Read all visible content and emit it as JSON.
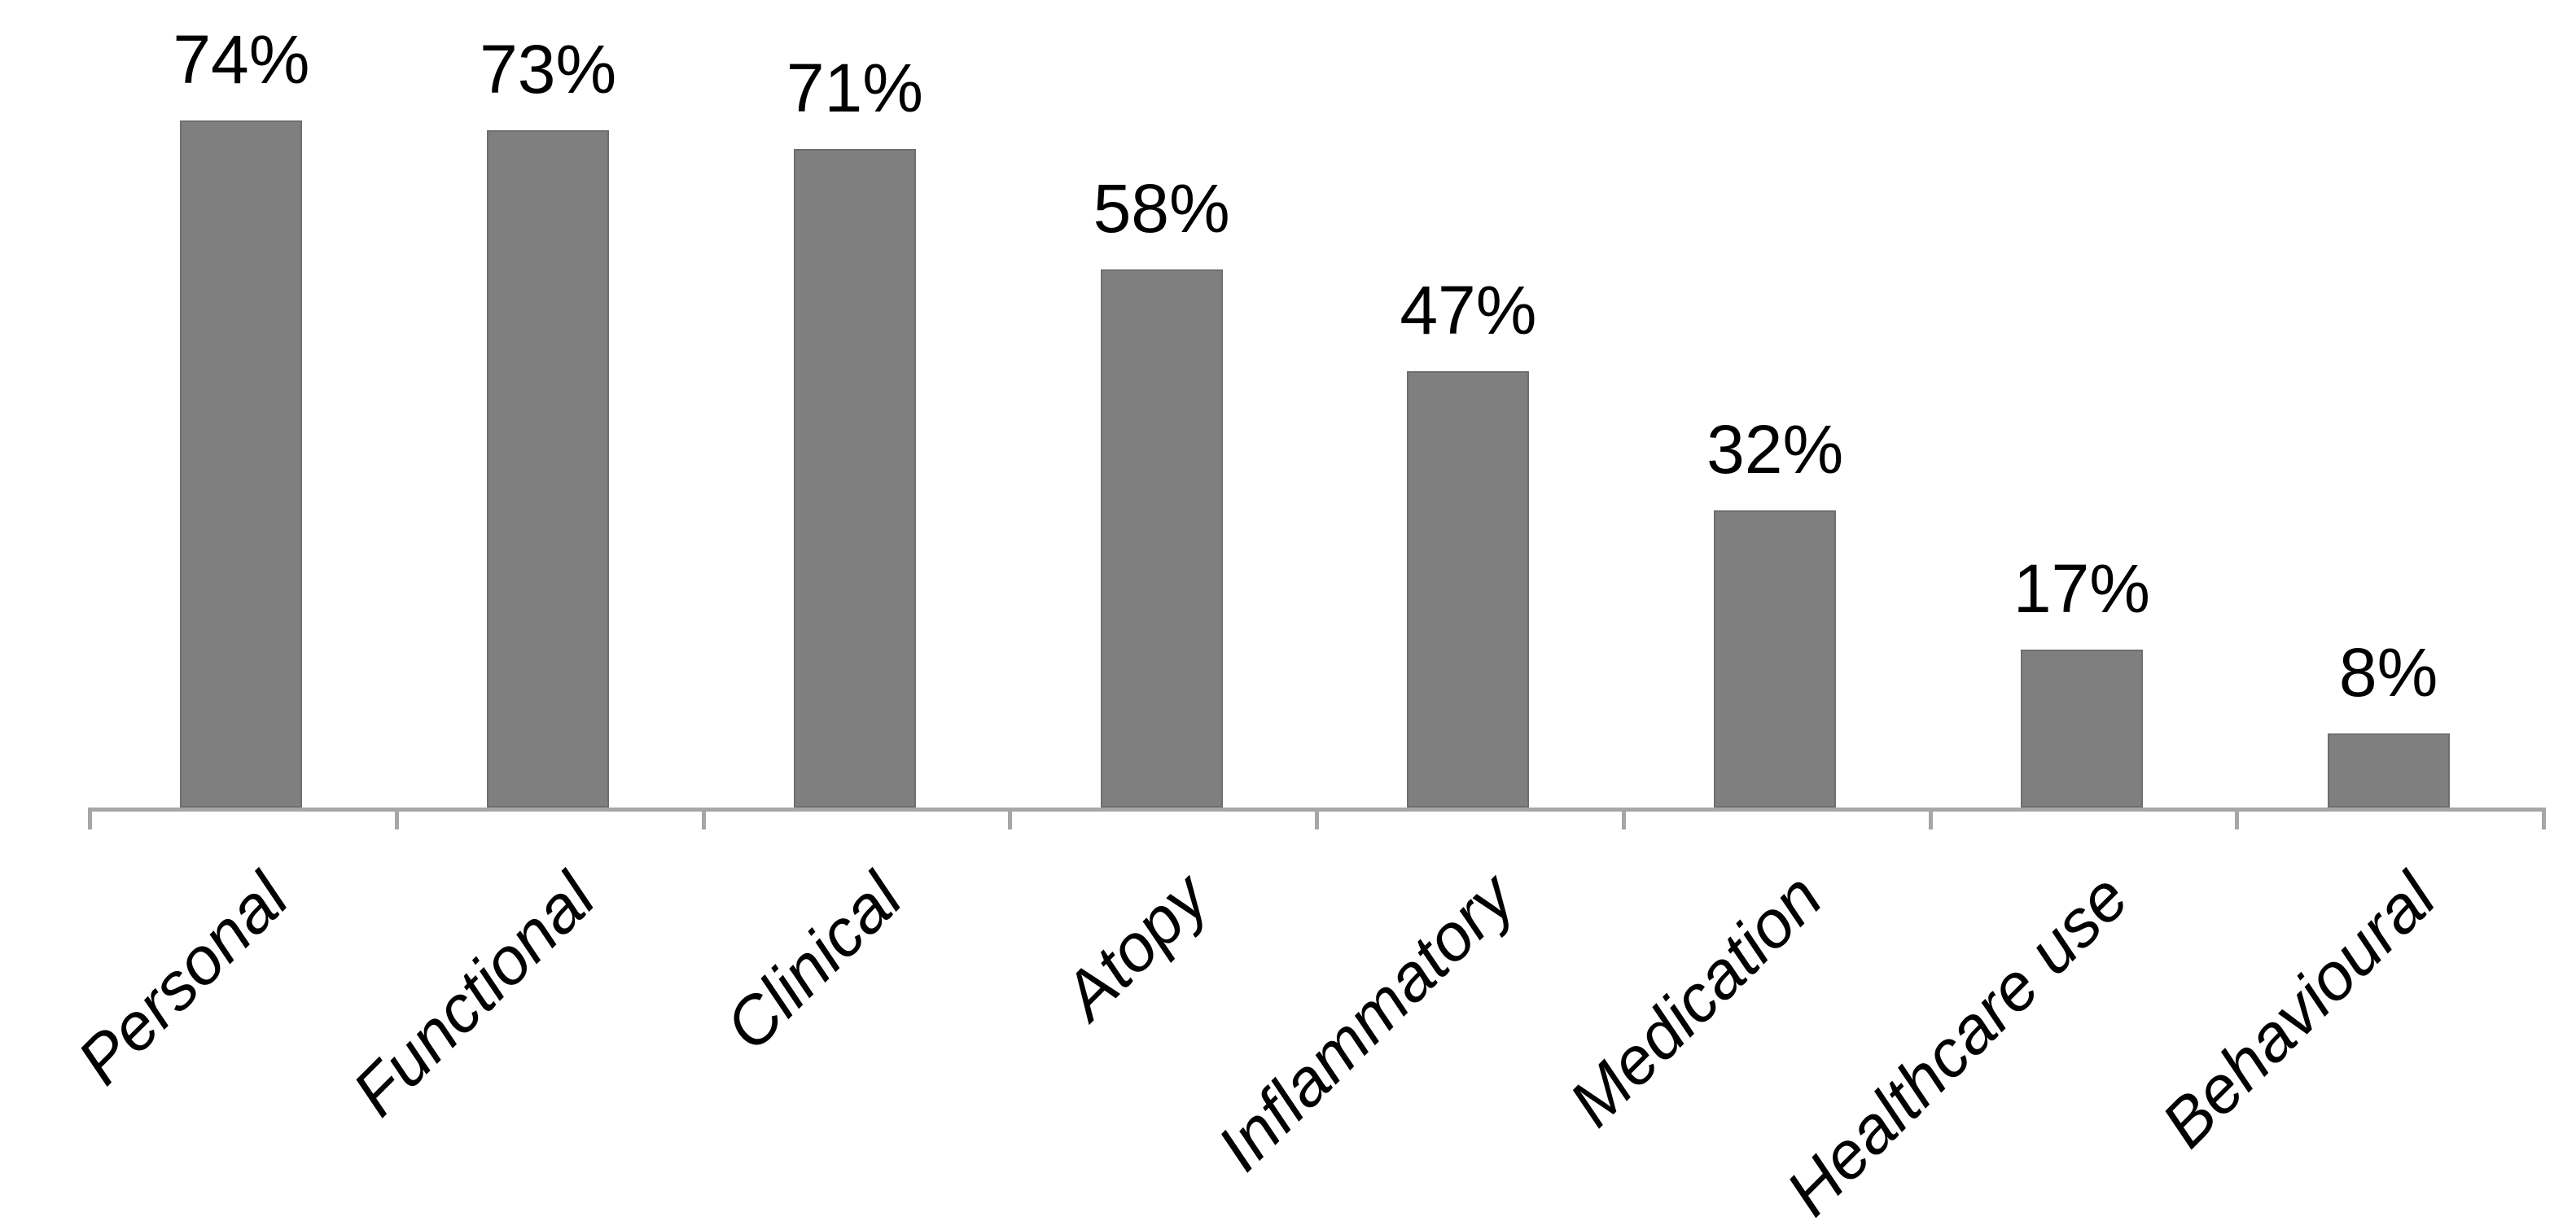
{
  "chart_data": {
    "type": "bar",
    "title": "",
    "xlabel": "",
    "ylabel": "",
    "categories": [
      "Personal",
      "Functional",
      "Clinical",
      "Atopy",
      "Inflammatory",
      "Medication",
      "Healthcare use",
      "Behavioural"
    ],
    "values": [
      74,
      73,
      71,
      58,
      47,
      32,
      17,
      8
    ],
    "value_labels": [
      "74%",
      "73%",
      "71%",
      "58%",
      "47%",
      "32%",
      "17%",
      "8%"
    ],
    "ylim": [
      0,
      80
    ],
    "grid": false,
    "legend": false,
    "y_axis_visible": false,
    "x_axis_tick_count": 9,
    "category_label_rotation_deg": 45,
    "category_label_style": "italic",
    "colors": {
      "bar_fill": "#7F7F7F",
      "bar_border": "#6E6E6E",
      "axis_line": "#A6A6A6",
      "text": "#000000",
      "background": "#FFFFFF"
    }
  }
}
